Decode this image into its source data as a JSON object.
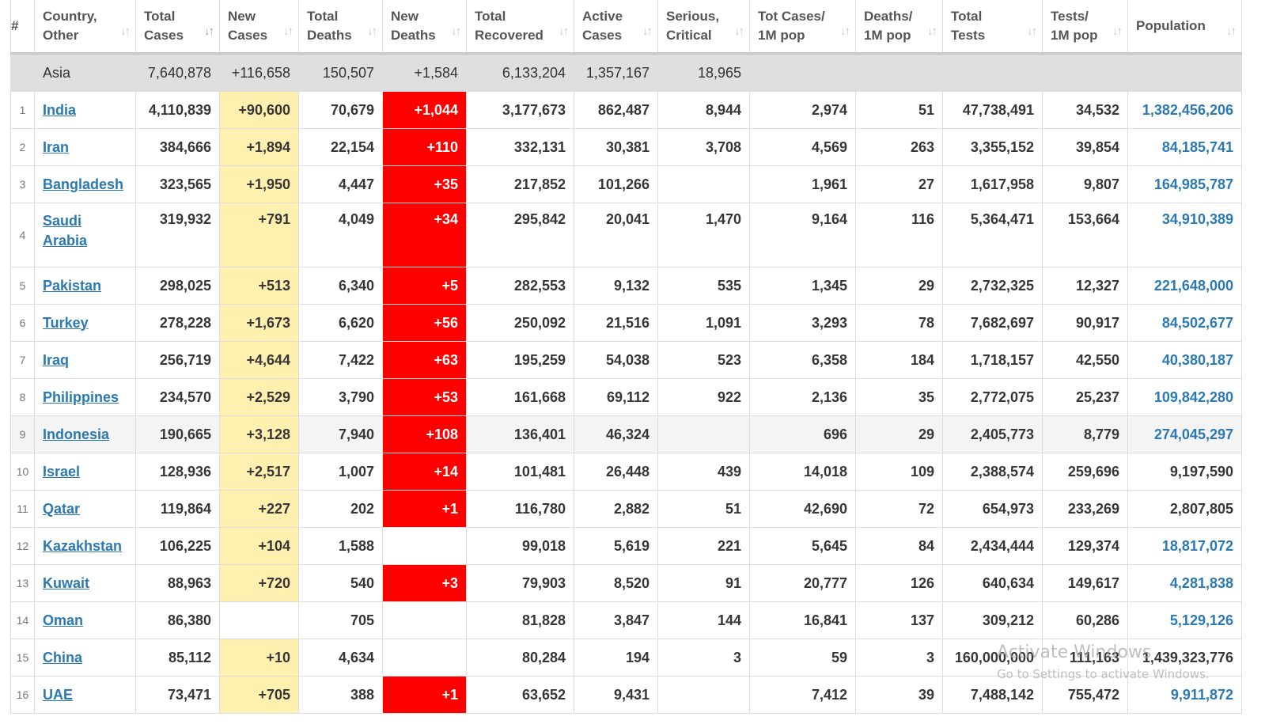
{
  "headers": [
    {
      "label": "#",
      "sortable": false
    },
    {
      "label": "Country, Other",
      "sortable": true
    },
    {
      "label": "Total Cases",
      "sortable": true,
      "active": true
    },
    {
      "label": "New Cases",
      "sortable": true
    },
    {
      "label": "Total Deaths",
      "sortable": true
    },
    {
      "label": "New Deaths",
      "sortable": true
    },
    {
      "label": "Total Recovered",
      "sortable": true
    },
    {
      "label": "Active Cases",
      "sortable": true
    },
    {
      "label": "Serious, Critical",
      "sortable": true
    },
    {
      "label": "Tot Cases/ 1M pop",
      "sortable": true
    },
    {
      "label": "Deaths/ 1M pop",
      "sortable": true
    },
    {
      "label": "Total Tests",
      "sortable": true
    },
    {
      "label": "Tests/ 1M pop",
      "sortable": true
    },
    {
      "label": "Population",
      "sortable": true
    }
  ],
  "region_row": {
    "name": "Asia",
    "total_cases": "7,640,878",
    "new_cases": "+116,658",
    "total_deaths": "150,507",
    "new_deaths": "+1,584",
    "total_recovered": "6,133,204",
    "active_cases": "1,357,167",
    "serious_critical": "18,965"
  },
  "rows": [
    {
      "num": "1",
      "country": "India",
      "total_cases": "4,110,839",
      "new_cases": "+90,600",
      "total_deaths": "70,679",
      "new_deaths": "+1,044",
      "total_recovered": "3,177,673",
      "active_cases": "862,487",
      "serious_critical": "8,944",
      "cases_per_1m": "2,974",
      "deaths_per_1m": "51",
      "total_tests": "47,738,491",
      "tests_per_1m": "34,532",
      "population": "1,382,456,206",
      "population_link": true
    },
    {
      "num": "2",
      "country": "Iran",
      "total_cases": "384,666",
      "new_cases": "+1,894",
      "total_deaths": "22,154",
      "new_deaths": "+110",
      "total_recovered": "332,131",
      "active_cases": "30,381",
      "serious_critical": "3,708",
      "cases_per_1m": "4,569",
      "deaths_per_1m": "263",
      "total_tests": "3,355,152",
      "tests_per_1m": "39,854",
      "population": "84,185,741",
      "population_link": true
    },
    {
      "num": "3",
      "country": "Bangladesh",
      "total_cases": "323,565",
      "new_cases": "+1,950",
      "total_deaths": "4,447",
      "new_deaths": "+35",
      "total_recovered": "217,852",
      "active_cases": "101,266",
      "serious_critical": "",
      "cases_per_1m": "1,961",
      "deaths_per_1m": "27",
      "total_tests": "1,617,958",
      "tests_per_1m": "9,807",
      "population": "164,985,787",
      "population_link": true
    },
    {
      "num": "4",
      "country": "Saudi Arabia",
      "total_cases": "319,932",
      "new_cases": "+791",
      "total_deaths": "4,049",
      "new_deaths": "+34",
      "total_recovered": "295,842",
      "active_cases": "20,041",
      "serious_critical": "1,470",
      "cases_per_1m": "9,164",
      "deaths_per_1m": "116",
      "total_tests": "5,364,471",
      "tests_per_1m": "153,664",
      "population": "34,910,389",
      "population_link": true,
      "tall": true
    },
    {
      "num": "5",
      "country": "Pakistan",
      "total_cases": "298,025",
      "new_cases": "+513",
      "total_deaths": "6,340",
      "new_deaths": "+5",
      "total_recovered": "282,553",
      "active_cases": "9,132",
      "serious_critical": "535",
      "cases_per_1m": "1,345",
      "deaths_per_1m": "29",
      "total_tests": "2,732,325",
      "tests_per_1m": "12,327",
      "population": "221,648,000",
      "population_link": true
    },
    {
      "num": "6",
      "country": "Turkey",
      "total_cases": "278,228",
      "new_cases": "+1,673",
      "total_deaths": "6,620",
      "new_deaths": "+56",
      "total_recovered": "250,092",
      "active_cases": "21,516",
      "serious_critical": "1,091",
      "cases_per_1m": "3,293",
      "deaths_per_1m": "78",
      "total_tests": "7,682,697",
      "tests_per_1m": "90,917",
      "population": "84,502,677",
      "population_link": true
    },
    {
      "num": "7",
      "country": "Iraq",
      "total_cases": "256,719",
      "new_cases": "+4,644",
      "total_deaths": "7,422",
      "new_deaths": "+63",
      "total_recovered": "195,259",
      "active_cases": "54,038",
      "serious_critical": "523",
      "cases_per_1m": "6,358",
      "deaths_per_1m": "184",
      "total_tests": "1,718,157",
      "tests_per_1m": "42,550",
      "population": "40,380,187",
      "population_link": true
    },
    {
      "num": "8",
      "country": "Philippines",
      "total_cases": "234,570",
      "new_cases": "+2,529",
      "total_deaths": "3,790",
      "new_deaths": "+53",
      "total_recovered": "161,668",
      "active_cases": "69,112",
      "serious_critical": "922",
      "cases_per_1m": "2,136",
      "deaths_per_1m": "35",
      "total_tests": "2,772,075",
      "tests_per_1m": "25,237",
      "population": "109,842,280",
      "population_link": true
    },
    {
      "num": "9",
      "country": "Indonesia",
      "total_cases": "190,665",
      "new_cases": "+3,128",
      "total_deaths": "7,940",
      "new_deaths": "+108",
      "total_recovered": "136,401",
      "active_cases": "46,324",
      "serious_critical": "",
      "cases_per_1m": "696",
      "deaths_per_1m": "29",
      "total_tests": "2,405,773",
      "tests_per_1m": "8,779",
      "population": "274,045,297",
      "population_link": true,
      "alt": true
    },
    {
      "num": "10",
      "country": "Israel",
      "total_cases": "128,936",
      "new_cases": "+2,517",
      "total_deaths": "1,007",
      "new_deaths": "+14",
      "total_recovered": "101,481",
      "active_cases": "26,448",
      "serious_critical": "439",
      "cases_per_1m": "14,018",
      "deaths_per_1m": "109",
      "total_tests": "2,388,574",
      "tests_per_1m": "259,696",
      "population": "9,197,590",
      "population_link": false
    },
    {
      "num": "11",
      "country": "Qatar",
      "total_cases": "119,864",
      "new_cases": "+227",
      "total_deaths": "202",
      "new_deaths": "+1",
      "total_recovered": "116,780",
      "active_cases": "2,882",
      "serious_critical": "51",
      "cases_per_1m": "42,690",
      "deaths_per_1m": "72",
      "total_tests": "654,973",
      "tests_per_1m": "233,269",
      "population": "2,807,805",
      "population_link": false
    },
    {
      "num": "12",
      "country": "Kazakhstan",
      "total_cases": "106,225",
      "new_cases": "+104",
      "total_deaths": "1,588",
      "new_deaths": "",
      "total_recovered": "99,018",
      "active_cases": "5,619",
      "serious_critical": "221",
      "cases_per_1m": "5,645",
      "deaths_per_1m": "84",
      "total_tests": "2,434,444",
      "tests_per_1m": "129,374",
      "population": "18,817,072",
      "population_link": true
    },
    {
      "num": "13",
      "country": "Kuwait",
      "total_cases": "88,963",
      "new_cases": "+720",
      "total_deaths": "540",
      "new_deaths": "+3",
      "total_recovered": "79,903",
      "active_cases": "8,520",
      "serious_critical": "91",
      "cases_per_1m": "20,777",
      "deaths_per_1m": "126",
      "total_tests": "640,634",
      "tests_per_1m": "149,617",
      "population": "4,281,838",
      "population_link": true
    },
    {
      "num": "14",
      "country": "Oman",
      "total_cases": "86,380",
      "new_cases": "",
      "total_deaths": "705",
      "new_deaths": "",
      "total_recovered": "81,828",
      "active_cases": "3,847",
      "serious_critical": "144",
      "cases_per_1m": "16,841",
      "deaths_per_1m": "137",
      "total_tests": "309,212",
      "tests_per_1m": "60,286",
      "population": "5,129,126",
      "population_link": true
    },
    {
      "num": "15",
      "country": "China",
      "total_cases": "85,112",
      "new_cases": "+10",
      "total_deaths": "4,634",
      "new_deaths": "",
      "total_recovered": "80,284",
      "active_cases": "194",
      "serious_critical": "3",
      "cases_per_1m": "59",
      "deaths_per_1m": "3",
      "total_tests": "160,000,000",
      "tests_per_1m": "111,163",
      "population": "1,439,323,776",
      "population_link": false
    },
    {
      "num": "16",
      "country": "UAE",
      "total_cases": "73,471",
      "new_cases": "+705",
      "total_deaths": "388",
      "new_deaths": "+1",
      "total_recovered": "63,652",
      "active_cases": "9,431",
      "serious_critical": "",
      "cases_per_1m": "7,412",
      "deaths_per_1m": "39",
      "total_tests": "7,488,142",
      "tests_per_1m": "755,472",
      "population": "9,911,872",
      "population_link": true
    }
  ],
  "watermark": {
    "line1": "Activate Windows",
    "line2": "Go to Settings to activate Windows."
  },
  "colors": {
    "link": "#2a79b5",
    "new_cases_bg": "#fff0b0",
    "new_deaths_bg": "#ff0000",
    "region_bg": "#dfdfdf"
  }
}
